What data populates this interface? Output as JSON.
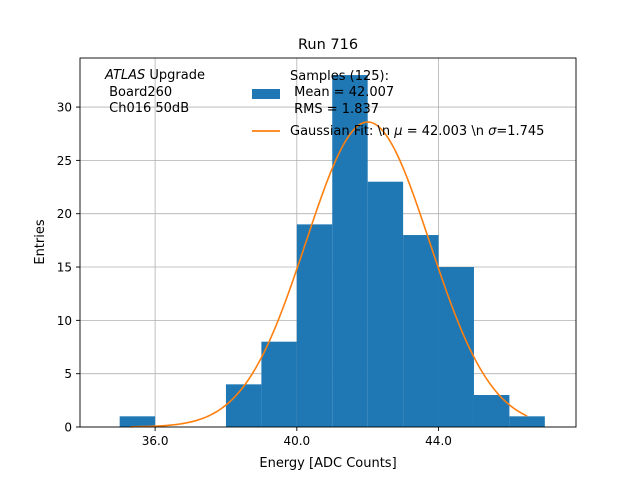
{
  "chart_data": {
    "type": "bar",
    "title": "Run 716",
    "xlabel": "Energy [ADC Counts]",
    "ylabel": "Entries",
    "xlim": [
      33.88,
      47.88
    ],
    "ylim": [
      0,
      34.6
    ],
    "x_ticks": [
      36.0,
      40.0,
      44.0
    ],
    "x_tick_labels": [
      "36.0",
      "40.0",
      "44.0"
    ],
    "y_ticks": [
      0,
      5,
      10,
      15,
      20,
      25,
      30
    ],
    "grid": true,
    "histogram": {
      "bin_edges": [
        35.0,
        36.0,
        37.0,
        38.0,
        39.0,
        40.0,
        41.0,
        42.0,
        43.0,
        44.0,
        45.0,
        46.0,
        47.0
      ],
      "counts": [
        1,
        0,
        0,
        4,
        8,
        19,
        33,
        23,
        18,
        15,
        3,
        1
      ],
      "color": "#1f77b4"
    },
    "fit": {
      "mu": 42.003,
      "sigma": 1.745,
      "amplitude": 28.6,
      "x_range": [
        35.3,
        46.5
      ],
      "color": "#ff7f0e"
    },
    "annotation": {
      "atlas_italic": "ATLAS",
      "atlas_rest": " Upgrade",
      "line2": " Board260",
      "line3": " Ch016 50dB"
    },
    "legend": {
      "placement": "top-right",
      "hist_line1": "Samples (125):",
      "hist_line2": " Mean = 42.007",
      "hist_line3": " RMS = 1.837",
      "fit_prefix": "Gaussian Fit: \\n ",
      "fit_mu_symbol": "μ",
      "fit_middle": " = 42.003 \\n ",
      "fit_sigma_symbol": "σ",
      "fit_suffix": "=1.745"
    }
  }
}
